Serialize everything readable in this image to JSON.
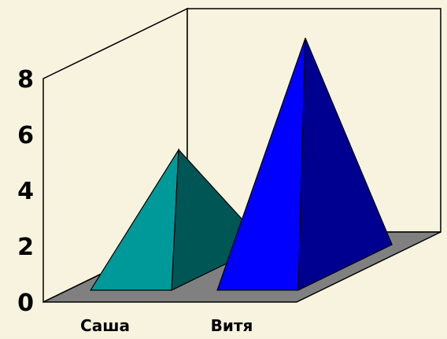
{
  "chart_data": {
    "type": "bar",
    "bar_shape": "pyramid",
    "three_d": true,
    "categories": [
      "Саша",
      "Витя"
    ],
    "values": [
      4.2,
      8.2
    ],
    "yticks": [
      "0",
      "2",
      "4",
      "6",
      "8"
    ],
    "ylim": [
      0,
      8
    ],
    "grid": false,
    "legend": "none",
    "colors": {
      "background": "#f7f3de",
      "floor": "#808080",
      "walls": "#f7f3de",
      "edges": "#000000",
      "bar_front": [
        "#009999",
        "#0000ff"
      ],
      "bar_side": [
        "#005555",
        "#000090"
      ]
    }
  }
}
